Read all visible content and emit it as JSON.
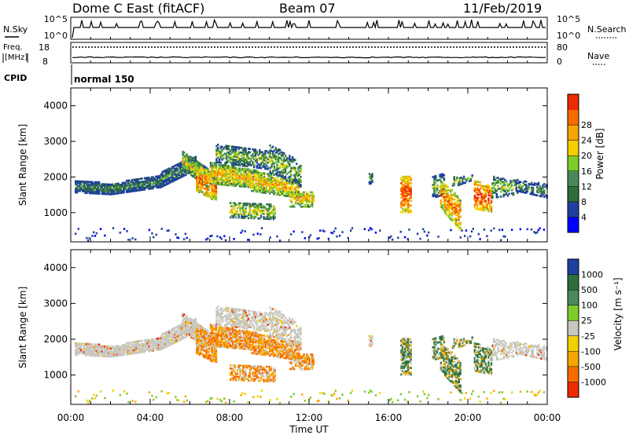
{
  "header": {
    "station": "Dome C East (fitACF)",
    "beam": "Beam 07",
    "date": "11/Feb/2019"
  },
  "colors": {
    "power_scale": [
      "#0000ff",
      "#1f3f9f",
      "#2e6e3a",
      "#4a8a5a",
      "#7ecb2a",
      "#f4d000",
      "#f7a600",
      "#f76b00",
      "#ee2a00"
    ],
    "velocity_scale": [
      "#1f3f9f",
      "#2e6e3a",
      "#4a8a5a",
      "#7ecb2a",
      "#c8c8c0",
      "#f4d000",
      "#f7a600",
      "#f76b00",
      "#ee2a00"
    ],
    "ground_scatter": "#c8c8c0"
  },
  "nsky_panel": {
    "left_label": "N.Sky",
    "left_ticks": [
      "10^5",
      "10^0"
    ],
    "right_label": "N.Search",
    "right_ticks": [
      "10^5",
      "10^0"
    ]
  },
  "freq_panel": {
    "left_label_1": "Freq.",
    "left_label_2": "[MHz]",
    "left_ticks": [
      "18",
      "8"
    ],
    "right_label": "Nave",
    "right_ticks": [
      "80",
      "0"
    ]
  },
  "cpid": {
    "label": "CPID",
    "mode": "normal 150"
  },
  "chart_data": [
    {
      "type": "heatmap",
      "quantity": "Power",
      "ylabel": "Slant Range [km]",
      "ylim": [
        180,
        4500
      ],
      "yticks": [
        "1000",
        "2000",
        "3000",
        "4000"
      ],
      "xlim_hours": [
        0,
        24
      ],
      "colorbar_label": "Power [dB]",
      "colorbar_ticks": [
        "4",
        "8",
        "12",
        "16",
        "20",
        "24",
        "28"
      ],
      "colorbar_range": [
        0,
        32
      ]
    },
    {
      "type": "heatmap",
      "quantity": "Velocity",
      "ylabel": "Slant Range [km]",
      "ylim": [
        180,
        4500
      ],
      "yticks": [
        "1000",
        "2000",
        "3000",
        "4000"
      ],
      "xlim_hours": [
        0,
        24
      ],
      "colorbar_label": "Velocity [m s⁻¹]",
      "colorbar_ticks": [
        "1000",
        "500",
        "100",
        "25",
        "-25",
        "-100",
        "-500",
        "-1000"
      ]
    }
  ],
  "xaxis": {
    "ticks": [
      "00:00",
      "04:00",
      "08:00",
      "12:00",
      "16:00",
      "20:00",
      "00:00"
    ],
    "label": "Time UT"
  }
}
